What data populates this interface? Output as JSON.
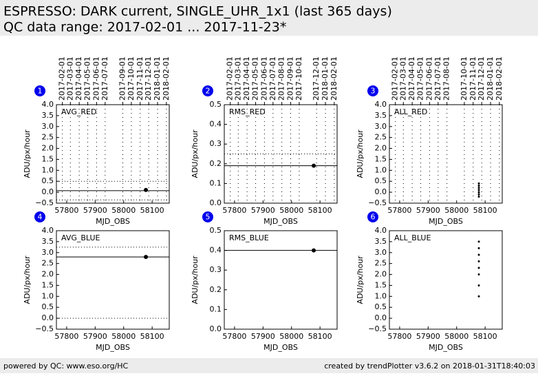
{
  "header": {
    "title": "ESPRESSO: DARK current, SINGLE_UHR_1x1 (last 365 days)",
    "subtitle": "QC data range: 2017-02-01 ... 2017-11-23*"
  },
  "footer": {
    "left": "powered by QC: www.eso.org/HC",
    "right": "created by trendPlotter v3.6.2 on 2018-01-31T18:40:03"
  },
  "chart_data": [
    {
      "type": "scatter",
      "number": "1",
      "title": "AVG_RED",
      "xlabel": "MJD_OBS",
      "ylabel": "ADU/px/hour",
      "xlim": [
        57764,
        58160
      ],
      "xticks": [
        57800,
        57900,
        58000,
        58100
      ],
      "ylim": [
        -0.5,
        4.0
      ],
      "yticks": [
        {
          "value": -0.5,
          "label": "−0.5"
        },
        {
          "value": 0,
          "label": "0.0"
        },
        0.5,
        {
          "value": 1,
          "label": "1.0"
        },
        1.5,
        {
          "value": 2,
          "label": "2.0"
        },
        2.5,
        {
          "value": 3,
          "label": "3.0"
        },
        3.5,
        {
          "value": 4,
          "label": "4.0"
        }
      ],
      "dateticks": [
        {
          "value": 57785,
          "label": "2017-02-01"
        },
        {
          "value": 57813,
          "label": "2017-03-01"
        },
        {
          "value": 57844,
          "label": "2017-04-01"
        },
        {
          "value": 57874,
          "label": "2017-05-01"
        },
        {
          "value": 57905,
          "label": "2017-06-01"
        },
        {
          "value": 57935,
          "label": "2017-07-01"
        },
        {
          "value": 57997,
          "label": "2017-09-01"
        },
        {
          "value": 58027,
          "label": "2017-10-01"
        },
        {
          "value": 58058,
          "label": "2017-11-01"
        },
        {
          "value": 58088,
          "label": "2017-12-01"
        },
        {
          "value": 58119,
          "label": "2018-01-01"
        },
        {
          "value": 58150,
          "label": "2018-02-01"
        }
      ],
      "x": [
        58078
      ],
      "values": [
        0.1
      ],
      "color": "#000000",
      "mean": 0.07,
      "limits": [
        -0.35,
        0.5
      ]
    },
    {
      "type": "scatter",
      "number": "2",
      "title": "RMS_RED",
      "xlabel": "MJD_OBS",
      "ylabel": "ADU/px/hour",
      "xlim": [
        57764,
        58160
      ],
      "xticks": [
        57800,
        57900,
        58000,
        58100
      ],
      "ylim": [
        0,
        0.5
      ],
      "yticks": [
        {
          "value": 0,
          "label": "0.0"
        },
        0.1,
        0.2,
        0.3,
        0.4,
        0.5
      ],
      "dateticks": [
        {
          "value": 57785,
          "label": "2017-02-01"
        },
        {
          "value": 57813,
          "label": "2017-03-01"
        },
        {
          "value": 57844,
          "label": "2017-04-01"
        },
        {
          "value": 57874,
          "label": "2017-05-01"
        },
        {
          "value": 57905,
          "label": "2017-06-01"
        },
        {
          "value": 57935,
          "label": "2017-07-01"
        },
        {
          "value": 57966,
          "label": "2017-08-01"
        },
        {
          "value": 57997,
          "label": "2017-09-01"
        },
        {
          "value": 58027,
          "label": "2017-10-01"
        },
        {
          "value": 58088,
          "label": "2017-12-01"
        },
        {
          "value": 58119,
          "label": "2018-01-01"
        },
        {
          "value": 58150,
          "label": "2018-02-01"
        }
      ],
      "x": [
        58078
      ],
      "values": [
        0.19
      ],
      "color": "#000000",
      "mean": 0.19,
      "limits": [
        0.25
      ]
    },
    {
      "type": "scatter",
      "number": "3",
      "title": "ALL_RED",
      "xlabel": "MJD_OBS",
      "ylabel": "ADU/px/hour",
      "xlim": [
        57764,
        58160
      ],
      "xticks": [
        57800,
        57900,
        58000,
        58100
      ],
      "ylim": [
        -0.5,
        4.0
      ],
      "yticks": [
        {
          "value": -0.5,
          "label": "−0.5"
        },
        {
          "value": 0,
          "label": "0.0"
        },
        0.5,
        {
          "value": 1,
          "label": "1.0"
        },
        1.5,
        {
          "value": 2,
          "label": "2.0"
        },
        2.5,
        {
          "value": 3,
          "label": "3.0"
        },
        3.5,
        {
          "value": 4,
          "label": "4.0"
        }
      ],
      "dateticks": [
        {
          "value": 57785,
          "label": "2017-02-01"
        },
        {
          "value": 57813,
          "label": "2017-03-01"
        },
        {
          "value": 57844,
          "label": "2017-04-01"
        },
        {
          "value": 57874,
          "label": "2017-05-01"
        },
        {
          "value": 57905,
          "label": "2017-06-01"
        },
        {
          "value": 57935,
          "label": "2017-07-01"
        },
        {
          "value": 57966,
          "label": "2017-08-01"
        },
        {
          "value": 58027,
          "label": "2017-10-01"
        },
        {
          "value": 58058,
          "label": "2017-11-01"
        },
        {
          "value": 58088,
          "label": "2017-12-01"
        },
        {
          "value": 58119,
          "label": "2018-01-01"
        },
        {
          "value": 58150,
          "label": "2018-02-01"
        }
      ],
      "x": [
        58078,
        58078,
        58078,
        58078,
        58078,
        58078,
        58078
      ],
      "values": [
        -0.2,
        -0.1,
        0,
        0.1,
        0.2,
        0.3,
        0.4
      ],
      "color": "#000000"
    },
    {
      "type": "scatter",
      "number": "4",
      "title": "AVG_BLUE",
      "xlabel": "MJD_OBS",
      "ylabel": "ADU/px/hour",
      "xlim": [
        57764,
        58160
      ],
      "xticks": [
        57800,
        57900,
        58000,
        58100
      ],
      "ylim": [
        -0.5,
        4.0
      ],
      "yticks": [
        {
          "value": -0.5,
          "label": "−0.5"
        },
        {
          "value": 0,
          "label": "0.0"
        },
        0.5,
        {
          "value": 1,
          "label": "1.0"
        },
        1.5,
        {
          "value": 2,
          "label": "2.0"
        },
        2.5,
        {
          "value": 3,
          "label": "3.0"
        },
        3.5,
        {
          "value": 4,
          "label": "4.0"
        }
      ],
      "x": [
        58078
      ],
      "values": [
        2.8
      ],
      "color": "#000000",
      "mean": 2.8,
      "limits": [
        0,
        3.25
      ]
    },
    {
      "type": "scatter",
      "number": "5",
      "title": "RMS_BLUE",
      "xlabel": "MJD_OBS",
      "ylabel": "ADU/px/hour",
      "xlim": [
        57764,
        58160
      ],
      "xticks": [
        57800,
        57900,
        58000,
        58100
      ],
      "ylim": [
        0,
        0.5
      ],
      "yticks": [
        {
          "value": 0,
          "label": "0.0"
        },
        0.1,
        0.2,
        0.3,
        0.4,
        0.5
      ],
      "x": [
        58078
      ],
      "values": [
        0.4
      ],
      "color": "#000000",
      "mean": 0.4
    },
    {
      "type": "scatter",
      "number": "6",
      "title": "ALL_BLUE",
      "xlabel": "MJD_OBS",
      "ylabel": "ADU/px/hour",
      "xlim": [
        57764,
        58160
      ],
      "xticks": [
        57800,
        57900,
        58000,
        58100
      ],
      "ylim": [
        -0.5,
        4.0
      ],
      "yticks": [
        {
          "value": -0.5,
          "label": "−0.5"
        },
        {
          "value": 0,
          "label": "0.0"
        },
        0.5,
        {
          "value": 1,
          "label": "1.0"
        },
        1.5,
        {
          "value": 2,
          "label": "2.0"
        },
        2.5,
        {
          "value": 3,
          "label": "3.0"
        },
        3.5,
        {
          "value": 4,
          "label": "4.0"
        }
      ],
      "x": [
        58078,
        58078,
        58078,
        58078,
        58078,
        58078,
        58078,
        58078
      ],
      "values": [
        1.0,
        1.5,
        2.0,
        2.3,
        2.6,
        2.9,
        3.2,
        3.5
      ],
      "color": "#000000"
    }
  ]
}
